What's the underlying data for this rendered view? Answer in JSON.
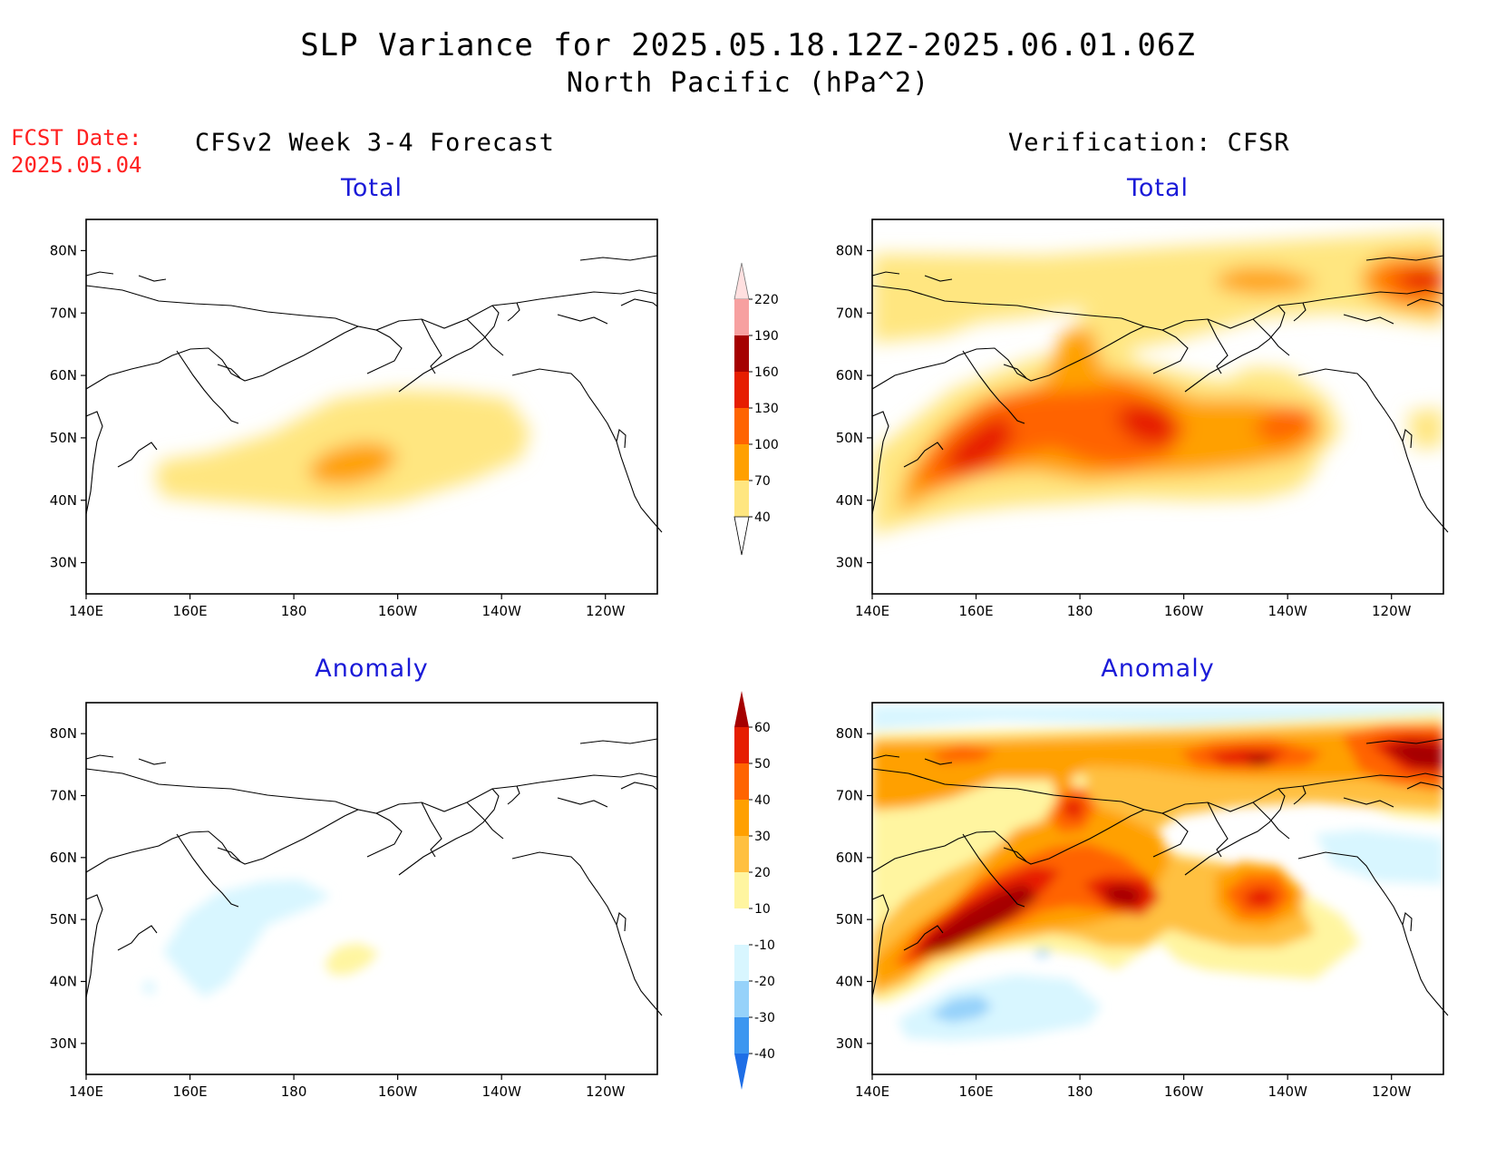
{
  "header": {
    "title": "SLP Variance for 2025.05.18.12Z-2025.06.01.06Z",
    "subtitle": "North Pacific (hPa^2)"
  },
  "forecast": {
    "label": "FCST Date:",
    "date": "2025.05.04"
  },
  "columns": {
    "left": "CFSv2 Week 3-4 Forecast",
    "right": "Verification: CFSR"
  },
  "panels": {
    "total": "Total",
    "anomaly": "Anomaly"
  },
  "axes": {
    "lon_labels": [
      "140E",
      "160E",
      "180",
      "160W",
      "140W",
      "120W"
    ],
    "lon_values": [
      140,
      160,
      180,
      200,
      220,
      240
    ],
    "lat_labels": [
      "30N",
      "40N",
      "50N",
      "60N",
      "70N",
      "80N"
    ],
    "lat_values": [
      30,
      40,
      50,
      60,
      70,
      80
    ],
    "lon_range": [
      140,
      250
    ],
    "lat_range": [
      25,
      85
    ]
  },
  "colorbars": {
    "total": {
      "levels": [
        "40",
        "70",
        "100",
        "130",
        "160",
        "190",
        "220"
      ],
      "colors": [
        "#ffe680",
        "#ffa000",
        "#ff6400",
        "#e61e00",
        "#a50000",
        "#f7a0a0",
        "#ffe0e0"
      ]
    },
    "anomaly": {
      "levels": [
        "60",
        "50",
        "40",
        "30",
        "20",
        "10",
        "-10",
        "-20",
        "-30",
        "-40"
      ],
      "colors": [
        "#a50000",
        "#e61e00",
        "#ff6400",
        "#ffa000",
        "#ffc040",
        "#fff5a0",
        "#ffffff",
        "#d8f6ff",
        "#96d2fa",
        "#3c96f0",
        "#1e6ee6"
      ]
    }
  }
}
